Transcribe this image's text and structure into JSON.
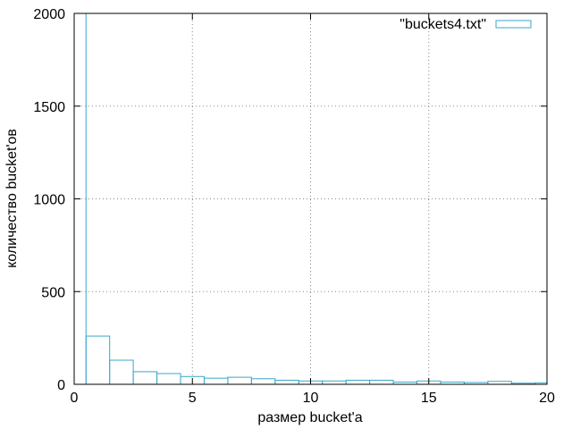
{
  "chart_data": {
    "type": "bar",
    "style": "histogram-steps",
    "x": [
      0,
      1,
      2,
      3,
      4,
      5,
      6,
      7,
      8,
      9,
      10,
      11,
      12,
      13,
      14,
      15,
      16,
      17,
      18,
      19,
      20
    ],
    "values": [
      2000,
      260,
      130,
      68,
      58,
      42,
      33,
      38,
      30,
      22,
      18,
      18,
      22,
      22,
      12,
      18,
      12,
      10,
      16,
      6,
      8
    ],
    "series": [
      {
        "name": "\"buckets4.txt\"",
        "color": "#3aa7c9"
      }
    ],
    "xlabel": "размер bucket'a",
    "ylabel": "количество bucket'ов",
    "xlim": [
      0,
      20
    ],
    "ylim": [
      0,
      2000
    ],
    "xticks": [
      "0",
      "5",
      "10",
      "15",
      "20"
    ],
    "yticks": [
      "0",
      "500",
      "1000",
      "1500",
      "2000"
    ],
    "grid": true,
    "legend_position": "top-right"
  }
}
